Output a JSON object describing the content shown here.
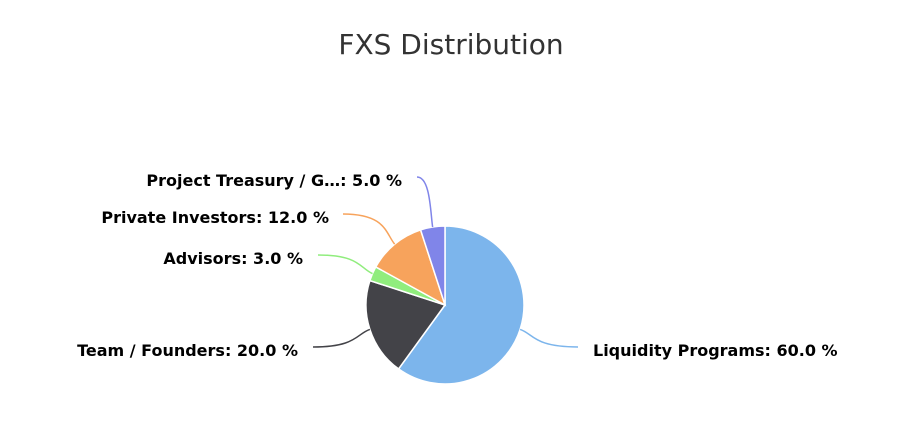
{
  "chart_data": {
    "type": "pie",
    "title": "FXS Distribution",
    "slices": [
      {
        "label": "Liquidity Programs",
        "display_label": "Liquidity Programs: 60.0 %",
        "value": 60.0,
        "color": "#7cb5ec"
      },
      {
        "label": "Team / Founders",
        "display_label": "Team / Founders: 20.0 %",
        "value": 20.0,
        "color": "#434348"
      },
      {
        "label": "Advisors",
        "display_label": "Advisors: 3.0 %",
        "value": 3.0,
        "color": "#90ed7d"
      },
      {
        "label": "Private Investors",
        "display_label": "Private Investors: 12.0 %",
        "value": 12.0,
        "color": "#f7a35c"
      },
      {
        "label": "Project Treasury / G…",
        "display_label": "Project Treasury / G…: 5.0 %",
        "value": 5.0,
        "color": "#8085e9"
      }
    ]
  }
}
